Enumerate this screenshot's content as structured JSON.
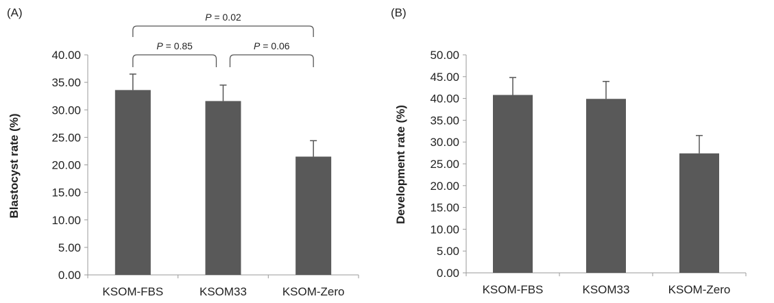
{
  "chart_data": [
    {
      "type": "bar",
      "panel_label": "(A)",
      "categories": [
        "KSOM-FBS",
        "KSOM33",
        "KSOM-Zero"
      ],
      "values": [
        33.6,
        31.6,
        21.5
      ],
      "error": [
        2.9,
        2.9,
        2.9
      ],
      "ylabel": "Blastocyst rate (%)",
      "ylim": [
        0,
        40
      ],
      "yticks": [
        "0.00",
        "5.00",
        "10.00",
        "15.00",
        "20.00",
        "25.00",
        "30.00",
        "35.00",
        "40.00"
      ],
      "bar_color": "#595959",
      "annotations": [
        {
          "p_letter": "P",
          "text": " = 0.02",
          "from": 0,
          "to": 2
        },
        {
          "p_letter": "P",
          "text": " = 0.85",
          "from": 0,
          "to": 1
        },
        {
          "p_letter": "P",
          "text": " = 0.06",
          "from": 1,
          "to": 2
        }
      ]
    },
    {
      "type": "bar",
      "panel_label": "(B)",
      "categories": [
        "KSOM-FBS",
        "KSOM33",
        "KSOM-Zero"
      ],
      "values": [
        40.8,
        39.9,
        27.4
      ],
      "error": [
        4.0,
        4.0,
        4.1
      ],
      "ylabel": "Development rate (%)",
      "ylim": [
        0,
        50
      ],
      "yticks": [
        "0.00",
        "5.00",
        "10.00",
        "15.00",
        "20.00",
        "25.00",
        "30.00",
        "35.00",
        "40.00",
        "45.00",
        "50.00"
      ],
      "bar_color": "#595959",
      "annotations": []
    }
  ]
}
